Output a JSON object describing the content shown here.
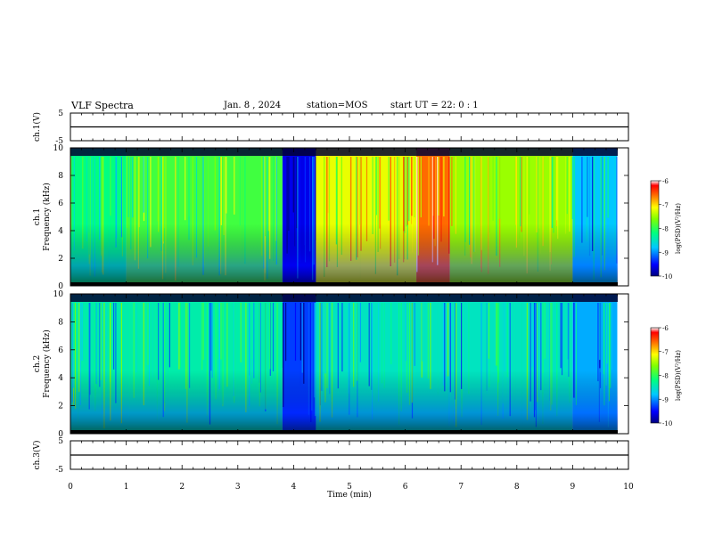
{
  "header": {
    "title": "VLF Spectra",
    "date": "Jan. 8 , 2024",
    "station": "station=MOS",
    "start": "start UT = 22: 0 : 1"
  },
  "chart_data": [
    {
      "type": "line",
      "ylabel": "ch.1(V)",
      "ylim": [
        -5,
        5
      ],
      "yticks": [
        "5",
        "-5"
      ],
      "x": [
        0,
        10
      ],
      "values": [
        0,
        0
      ],
      "color": "#000000"
    },
    {
      "type": "heatmap",
      "ylabel": "ch.1\nFrequency (kHz)",
      "ylim": [
        0,
        10
      ],
      "yticks": [
        "0",
        "2",
        "4",
        "6",
        "8",
        "10"
      ],
      "xlim": [
        0,
        10
      ],
      "colorbar": {
        "label": "log(PSD)(V²/Hz)",
        "range": [
          -10,
          -6
        ],
        "ticks": [
          "-6",
          "-7",
          "-8",
          "-9",
          "-10"
        ]
      },
      "segments": [
        {
          "x": [
            0.0,
            1.0
          ],
          "level": -8.2
        },
        {
          "x": [
            1.0,
            3.8
          ],
          "level": -7.9
        },
        {
          "x": [
            3.8,
            4.4
          ],
          "level": -9.6
        },
        {
          "x": [
            4.4,
            6.2
          ],
          "level": -7.2
        },
        {
          "x": [
            6.2,
            6.8
          ],
          "level": -6.6
        },
        {
          "x": [
            6.8,
            9.0
          ],
          "level": -7.5
        },
        {
          "x": [
            9.0,
            9.8
          ],
          "level": -8.8
        }
      ]
    },
    {
      "type": "heatmap",
      "ylabel": "ch.2\nFrequency (kHz)",
      "ylim": [
        0,
        10
      ],
      "yticks": [
        "0",
        "2",
        "4",
        "6",
        "8",
        "10"
      ],
      "xlim": [
        0,
        10
      ],
      "colorbar": {
        "label": "log(PSD)(V²/Hz)",
        "range": [
          -10,
          -6
        ],
        "ticks": [
          "-6",
          "-7",
          "-8",
          "-9",
          "-10"
        ]
      },
      "segments": [
        {
          "x": [
            0.0,
            3.8
          ],
          "level": -8.4
        },
        {
          "x": [
            3.8,
            4.4
          ],
          "level": -9.3
        },
        {
          "x": [
            4.4,
            9.0
          ],
          "level": -8.5
        },
        {
          "x": [
            9.0,
            9.8
          ],
          "level": -8.9
        }
      ]
    },
    {
      "type": "line",
      "ylabel": "ch.3(V)",
      "ylim": [
        -5,
        5
      ],
      "yticks": [
        "5",
        "-5"
      ],
      "x": [
        0,
        10
      ],
      "values": [
        0,
        0
      ],
      "color": "#000000"
    }
  ],
  "xaxis": {
    "label": "Time (min)",
    "ticks": [
      "0",
      "1",
      "2",
      "3",
      "4",
      "5",
      "6",
      "7",
      "8",
      "9",
      "10"
    ],
    "range": [
      0,
      10
    ]
  }
}
